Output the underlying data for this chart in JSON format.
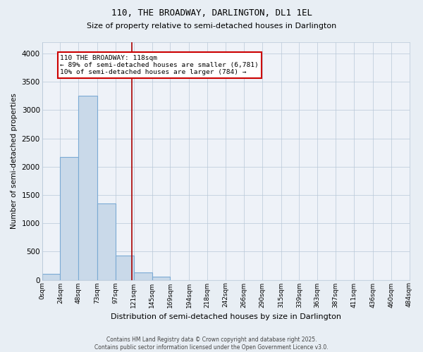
{
  "title": "110, THE BROADWAY, DARLINGTON, DL1 1EL",
  "subtitle": "Size of property relative to semi-detached houses in Darlington",
  "xlabel": "Distribution of semi-detached houses by size in Darlington",
  "ylabel": "Number of semi-detached properties",
  "footer_line1": "Contains HM Land Registry data © Crown copyright and database right 2025.",
  "footer_line2": "Contains public sector information licensed under the Open Government Licence v3.0.",
  "annotation_line1": "110 THE BROADWAY: 118sqm",
  "annotation_line2": "← 89% of semi-detached houses are smaller (6,781)",
  "annotation_line3": "10% of semi-detached houses are larger (784) →",
  "bar_color": "#c9d9e9",
  "bar_edgecolor": "#7baad4",
  "vline_color": "#aa0000",
  "annotation_edgecolor": "#cc0000",
  "bin_edges": [
    0,
    24,
    48,
    73,
    97,
    121,
    145,
    169,
    194,
    218,
    242,
    266,
    290,
    315,
    339,
    363,
    387,
    411,
    436,
    460,
    484
  ],
  "bin_labels": [
    "0sqm",
    "24sqm",
    "48sqm",
    "73sqm",
    "97sqm",
    "121sqm",
    "145sqm",
    "169sqm",
    "194sqm",
    "218sqm",
    "242sqm",
    "266sqm",
    "290sqm",
    "315sqm",
    "339sqm",
    "363sqm",
    "387sqm",
    "411sqm",
    "436sqm",
    "460sqm",
    "484sqm"
  ],
  "bar_heights": [
    100,
    2175,
    3250,
    1350,
    425,
    125,
    50,
    0,
    0,
    0,
    0,
    0,
    0,
    0,
    0,
    0,
    0,
    0,
    0,
    0
  ],
  "vline_x": 118,
  "ylim": [
    0,
    4200
  ],
  "yticks": [
    0,
    500,
    1000,
    1500,
    2000,
    2500,
    3000,
    3500,
    4000
  ],
  "bg_color": "#e8eef4",
  "plot_bg_color": "#eef2f8",
  "grid_color": "#b8c8d8",
  "title_fontsize": 9,
  "subtitle_fontsize": 8
}
